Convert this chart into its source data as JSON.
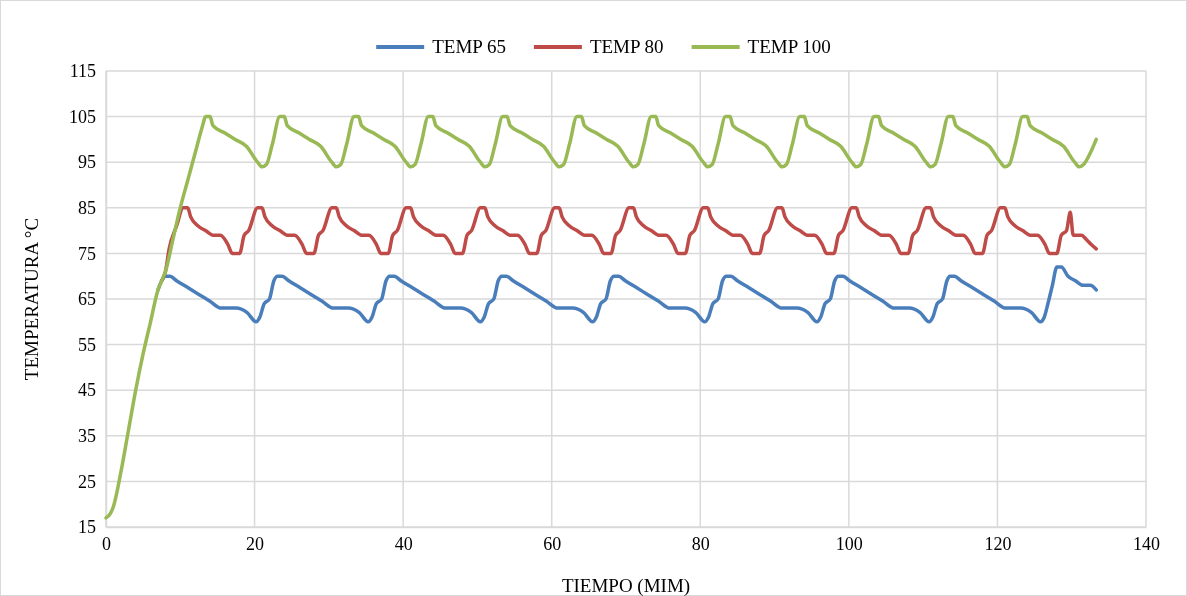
{
  "chart_data": {
    "type": "line",
    "xlabel": "TIEMPO (MIM)",
    "ylabel": "TEMPERATURA °C",
    "xlim": [
      0,
      140
    ],
    "xticks": [
      0,
      20,
      40,
      60,
      80,
      100,
      120,
      140
    ],
    "ylim": [
      15,
      115
    ],
    "yticks": [
      15,
      25,
      35,
      45,
      55,
      65,
      75,
      85,
      95,
      105,
      115
    ],
    "grid": true,
    "legend": "top",
    "marker": "none",
    "line_style": "solid",
    "series": [
      {
        "name": "TEMP 65",
        "color": "#4a7ebb",
        "x": [
          7,
          7.5,
          8,
          8.6,
          9.5,
          11,
          12.5,
          14,
          15.5,
          17.5,
          19,
          20.2,
          20.7,
          21.3,
          22,
          22.6,
          23.1,
          23.7,
          24.6,
          26.1,
          27.6,
          29.1,
          30.6,
          32.6,
          34.1,
          35.3,
          35.8,
          36.4,
          37.1,
          37.7,
          38.2,
          38.8,
          39.7,
          41.2,
          42.7,
          44.2,
          45.7,
          47.7,
          49.2,
          50.4,
          50.9,
          51.5,
          52.2,
          52.8,
          53.3,
          53.9,
          54.8,
          56.3,
          57.8,
          59.3,
          60.8,
          62.8,
          64.3,
          65.5,
          66,
          66.6,
          67.3,
          67.9,
          68.4,
          69,
          69.9,
          71.4,
          72.9,
          74.4,
          75.9,
          77.9,
          79.4,
          80.6,
          81.1,
          81.7,
          82.4,
          83,
          83.5,
          84.1,
          85,
          86.5,
          88,
          89.5,
          91,
          93,
          94.5,
          95.7,
          96.2,
          96.8,
          97.5,
          98.1,
          98.6,
          99.2,
          100.1,
          101.6,
          103.1,
          104.6,
          106.1,
          108.1,
          109.6,
          110.8,
          111.3,
          111.9,
          112.6,
          113.2,
          113.6,
          114.2,
          115.1,
          116.6,
          118.1,
          119.6,
          121.1,
          123.1,
          124.6,
          125.8,
          126.3,
          126.8,
          127.4,
          128,
          128.6,
          129.5,
          130.5,
          131.5,
          132.5,
          133.3
        ],
        "values": [
          67,
          69,
          70,
          70,
          69,
          67.5,
          66,
          64.5,
          63,
          63,
          62,
          60,
          61,
          64,
          65,
          69,
          70,
          70,
          69,
          67.5,
          66,
          64.5,
          63,
          63,
          62,
          60,
          61,
          64,
          65,
          69,
          70,
          70,
          69,
          67.5,
          66,
          64.5,
          63,
          63,
          62,
          60,
          61,
          64,
          65,
          69,
          70,
          70,
          69,
          67.5,
          66,
          64.5,
          63,
          63,
          62,
          60,
          61,
          64,
          65,
          69,
          70,
          70,
          69,
          67.5,
          66,
          64.5,
          63,
          63,
          62,
          60,
          61,
          64,
          65,
          69,
          70,
          70,
          69,
          67.5,
          66,
          64.5,
          63,
          63,
          62,
          60,
          61,
          64,
          65,
          69,
          70,
          70,
          69,
          67.5,
          66,
          64.5,
          63,
          63,
          62,
          60,
          61,
          64,
          65,
          69,
          70,
          70,
          69,
          67.5,
          66,
          64.5,
          63,
          63,
          62,
          60,
          61,
          64,
          68,
          72,
          72,
          70,
          69,
          68,
          68,
          67
        ]
      },
      {
        "name": "TEMP 80",
        "color": "#be4b48",
        "x": [
          7.5,
          8,
          8.5,
          9.5,
          10.4,
          11,
          11.4,
          12.4,
          13.4,
          14.4,
          15.4,
          16.4,
          17,
          18,
          18.6,
          19.2,
          20.4,
          21,
          21.4,
          22.4,
          23.4,
          24.4,
          25.4,
          26.4,
          27,
          28,
          28.6,
          29.2,
          30.4,
          31,
          31.4,
          32.4,
          33.4,
          34.4,
          35.4,
          36.4,
          37,
          38,
          38.6,
          39.2,
          40.4,
          41,
          41.4,
          42.4,
          43.4,
          44.4,
          45.4,
          46.4,
          47,
          48,
          48.6,
          49.2,
          50.4,
          51,
          51.4,
          52.4,
          53.4,
          54.4,
          55.4,
          56.4,
          57,
          58,
          58.6,
          59.2,
          60.4,
          61,
          61.4,
          62.4,
          63.4,
          64.4,
          65.4,
          66.4,
          67,
          68,
          68.6,
          69.2,
          70.4,
          71,
          71.4,
          72.4,
          73.4,
          74.4,
          75.4,
          76.4,
          77,
          78,
          78.6,
          79.2,
          80.4,
          81,
          81.4,
          82.4,
          83.4,
          84.4,
          85.4,
          86.4,
          87,
          88,
          88.6,
          89.2,
          90.4,
          91,
          91.4,
          92.4,
          93.4,
          94.4,
          95.4,
          96.4,
          97,
          98,
          98.6,
          99.2,
          100.4,
          101,
          101.4,
          102.4,
          103.4,
          104.4,
          105.4,
          106.4,
          107,
          108,
          108.6,
          109.2,
          110.4,
          111,
          111.4,
          112.4,
          113.4,
          114.4,
          115.4,
          116.4,
          117,
          118,
          118.6,
          119.2,
          120.4,
          121,
          121.4,
          122.4,
          123.4,
          124.4,
          125.4,
          126.4,
          127,
          128,
          128.6,
          129.3,
          129.8,
          130.2,
          131.3,
          132,
          132.6,
          133.3
        ],
        "values": [
          69,
          71,
          76,
          81,
          85,
          85,
          83,
          81,
          80,
          79,
          79,
          77,
          75,
          75,
          79,
          80,
          85,
          85,
          83,
          81,
          80,
          79,
          79,
          77,
          75,
          75,
          79,
          80,
          85,
          85,
          83,
          81,
          80,
          79,
          79,
          77,
          75,
          75,
          79,
          80,
          85,
          85,
          83,
          81,
          80,
          79,
          79,
          77,
          75,
          75,
          79,
          80,
          85,
          85,
          83,
          81,
          80,
          79,
          79,
          77,
          75,
          75,
          79,
          80,
          85,
          85,
          83,
          81,
          80,
          79,
          79,
          77,
          75,
          75,
          79,
          80,
          85,
          85,
          83,
          81,
          80,
          79,
          79,
          77,
          75,
          75,
          79,
          80,
          85,
          85,
          83,
          81,
          80,
          79,
          79,
          77,
          75,
          75,
          79,
          80,
          85,
          85,
          83,
          81,
          80,
          79,
          79,
          77,
          75,
          75,
          79,
          80,
          85,
          85,
          83,
          81,
          80,
          79,
          79,
          77,
          75,
          75,
          79,
          80,
          85,
          85,
          83,
          81,
          80,
          79,
          79,
          77,
          75,
          75,
          79,
          80,
          85,
          85,
          83,
          81,
          80,
          79,
          79,
          77,
          75,
          75,
          79,
          80,
          84,
          79,
          79,
          78,
          77,
          76
        ]
      },
      {
        "name": "TEMP 100",
        "color": "#98b954",
        "x": [
          0,
          0.6,
          1,
          2,
          3,
          4,
          5,
          6,
          7,
          7.5,
          8,
          9,
          10,
          11,
          12,
          13,
          13.4,
          14,
          14.4,
          15.9,
          17.4,
          18.9,
          20.4,
          21,
          21.6,
          22.4,
          23.4,
          24,
          24.4,
          25.9,
          27.4,
          28.9,
          30.4,
          31,
          31.6,
          32.4,
          33.4,
          34,
          34.4,
          35.9,
          37.4,
          38.9,
          40.4,
          41,
          41.6,
          42.4,
          43.4,
          44,
          44.4,
          45.9,
          47.4,
          48.9,
          50.4,
          51,
          51.6,
          52.4,
          53.4,
          54,
          54.4,
          55.9,
          57.4,
          58.9,
          60.4,
          61,
          61.6,
          62.4,
          63.4,
          64,
          64.4,
          65.9,
          67.4,
          68.9,
          70.4,
          71,
          71.6,
          72.4,
          73.4,
          74,
          74.4,
          75.9,
          77.4,
          78.9,
          80.4,
          81,
          81.6,
          82.4,
          83.4,
          84,
          84.4,
          85.9,
          87.4,
          88.9,
          90.4,
          91,
          91.6,
          92.4,
          93.4,
          94,
          94.4,
          95.9,
          97.4,
          98.9,
          100.4,
          101,
          101.6,
          102.4,
          103.4,
          104,
          104.4,
          105.9,
          107.4,
          108.9,
          110.4,
          111,
          111.6,
          112.4,
          113.4,
          114,
          114.4,
          115.9,
          117.4,
          118.9,
          120.4,
          121,
          121.6,
          122.4,
          123.4,
          124,
          124.4,
          125.9,
          127.4,
          128.9,
          130.4,
          131,
          131.6,
          132.5,
          133.3
        ],
        "values": [
          17,
          18,
          19.5,
          27,
          36,
          45,
          53,
          60,
          67,
          69,
          71,
          78,
          85,
          91,
          97,
          103,
          105,
          105,
          103,
          101.5,
          100,
          98.5,
          95,
          94,
          94.5,
          99,
          105,
          105,
          103,
          101.5,
          100,
          98.5,
          95,
          94,
          94.5,
          99,
          105,
          105,
          103,
          101.5,
          100,
          98.5,
          95,
          94,
          94.5,
          99,
          105,
          105,
          103,
          101.5,
          100,
          98.5,
          95,
          94,
          94.5,
          99,
          105,
          105,
          103,
          101.5,
          100,
          98.5,
          95,
          94,
          94.5,
          99,
          105,
          105,
          103,
          101.5,
          100,
          98.5,
          95,
          94,
          94.5,
          99,
          105,
          105,
          103,
          101.5,
          100,
          98.5,
          95,
          94,
          94.5,
          99,
          105,
          105,
          103,
          101.5,
          100,
          98.5,
          95,
          94,
          94.5,
          99,
          105,
          105,
          103,
          101.5,
          100,
          98.5,
          95,
          94,
          94.5,
          99,
          105,
          105,
          103,
          101.5,
          100,
          98.5,
          95,
          94,
          94.5,
          99,
          105,
          105,
          103,
          101.5,
          100,
          98.5,
          95,
          94,
          94.5,
          99,
          105,
          105,
          103,
          101.5,
          100,
          98.5,
          95,
          94,
          94.5,
          97,
          100
        ]
      }
    ]
  }
}
